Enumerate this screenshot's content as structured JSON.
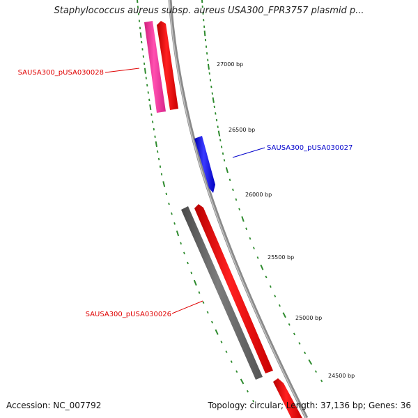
{
  "map": {
    "title": "Staphylococcus aureus subsp. aureus USA300_FPR3757 plasmid p...",
    "accession_text": "Accession: NC_007792",
    "summary_text": "Topology: circular; Length: 37,136 bp; Genes: 36"
  },
  "ruler": {
    "tick_labels": [
      "27000 bp",
      "26500 bp",
      "26000 bp",
      "25500 bp",
      "25000 bp",
      "24500 bp"
    ]
  },
  "gene_labels": [
    {
      "text": "SAUSA300_pUSA030028",
      "color": "#e00000"
    },
    {
      "text": "SAUSA300_pUSA030027",
      "color": "#0000cc"
    },
    {
      "text": "SAUSA300_pUSA030026",
      "color": "#e00000"
    }
  ],
  "colors": {
    "backbone": "#8a8a8a",
    "tick": "#2e8b2e",
    "gene_red": "#ff0000",
    "gene_pink": "#ff2fa0",
    "gene_blue": "#1a1aff",
    "gene_gray": "#6a6a6a",
    "text_red": "#e00000",
    "text_blue": "#0000cc"
  }
}
